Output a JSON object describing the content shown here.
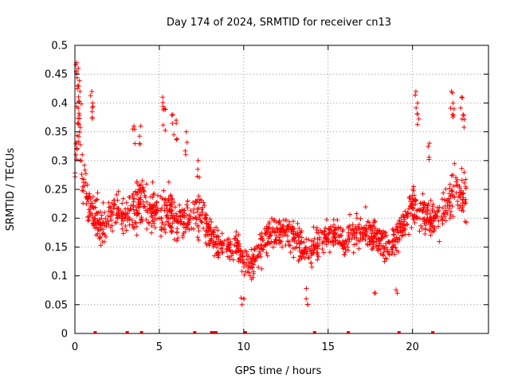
{
  "chart_data": {
    "type": "scatter",
    "title": "Day 174 of 2024, SRMTID for receiver cn13",
    "xlabel": "GPS time / hours",
    "ylabel": "SRMTID / TECUs",
    "xlim": [
      0,
      24.5
    ],
    "ylim": [
      0,
      0.5
    ],
    "x_ticks": [
      0,
      5,
      10,
      15,
      20
    ],
    "x_tick_labels": [
      "0",
      "5",
      "10",
      "15",
      "20"
    ],
    "y_ticks": [
      0,
      0.05,
      0.1,
      0.15,
      0.2,
      0.25,
      0.3,
      0.35,
      0.4,
      0.45,
      0.5
    ],
    "y_tick_labels": [
      "0",
      "0.05",
      "0.1",
      "0.15",
      "0.2",
      "0.25",
      "0.3",
      "0.35",
      "0.4",
      "0.45",
      "0.5"
    ],
    "grid": true,
    "marker": "+",
    "color": "#ff0000",
    "series": [
      {
        "name": "SRMTID",
        "trend": [
          [
            0.0,
            0.3,
            0.06
          ],
          [
            0.2,
            0.38,
            0.07
          ],
          [
            0.5,
            0.25,
            0.05
          ],
          [
            1.0,
            0.21,
            0.05
          ],
          [
            1.5,
            0.19,
            0.04
          ],
          [
            2.0,
            0.2,
            0.04
          ],
          [
            2.5,
            0.22,
            0.04
          ],
          [
            3.0,
            0.2,
            0.04
          ],
          [
            3.5,
            0.22,
            0.05
          ],
          [
            4.0,
            0.23,
            0.05
          ],
          [
            4.5,
            0.22,
            0.05
          ],
          [
            5.0,
            0.21,
            0.05
          ],
          [
            5.5,
            0.22,
            0.05
          ],
          [
            6.0,
            0.19,
            0.05
          ],
          [
            6.5,
            0.2,
            0.04
          ],
          [
            7.0,
            0.2,
            0.04
          ],
          [
            7.5,
            0.21,
            0.05
          ],
          [
            8.0,
            0.17,
            0.04
          ],
          [
            8.5,
            0.15,
            0.035
          ],
          [
            9.0,
            0.15,
            0.035
          ],
          [
            9.5,
            0.15,
            0.035
          ],
          [
            10.0,
            0.13,
            0.035
          ],
          [
            10.5,
            0.12,
            0.035
          ],
          [
            11.0,
            0.15,
            0.035
          ],
          [
            11.5,
            0.17,
            0.035
          ],
          [
            12.0,
            0.18,
            0.035
          ],
          [
            12.5,
            0.18,
            0.035
          ],
          [
            13.0,
            0.17,
            0.035
          ],
          [
            13.5,
            0.15,
            0.04
          ],
          [
            14.0,
            0.14,
            0.035
          ],
          [
            14.5,
            0.16,
            0.035
          ],
          [
            15.0,
            0.17,
            0.035
          ],
          [
            15.5,
            0.17,
            0.035
          ],
          [
            16.0,
            0.16,
            0.035
          ],
          [
            16.5,
            0.17,
            0.04
          ],
          [
            17.0,
            0.18,
            0.04
          ],
          [
            17.5,
            0.17,
            0.035
          ],
          [
            18.0,
            0.16,
            0.035
          ],
          [
            18.5,
            0.15,
            0.035
          ],
          [
            19.0,
            0.16,
            0.035
          ],
          [
            19.5,
            0.19,
            0.04
          ],
          [
            20.0,
            0.22,
            0.05
          ],
          [
            20.5,
            0.21,
            0.05
          ],
          [
            21.0,
            0.2,
            0.045
          ],
          [
            21.5,
            0.2,
            0.045
          ],
          [
            22.0,
            0.22,
            0.05
          ],
          [
            22.5,
            0.25,
            0.06
          ],
          [
            23.0,
            0.24,
            0.05
          ]
        ],
        "x_range": [
          0,
          23.2
        ],
        "n_points": 1500,
        "spikes": [
          [
            0.1,
            0.47
          ],
          [
            0.2,
            0.46
          ],
          [
            0.15,
            0.43
          ],
          [
            0.3,
            0.42
          ],
          [
            1.0,
            0.42
          ],
          [
            1.05,
            0.4
          ],
          [
            3.5,
            0.36
          ],
          [
            3.9,
            0.36
          ],
          [
            5.2,
            0.41
          ],
          [
            5.3,
            0.39
          ],
          [
            5.8,
            0.38
          ],
          [
            6.0,
            0.37
          ],
          [
            6.6,
            0.35
          ],
          [
            7.3,
            0.3
          ],
          [
            20.2,
            0.42
          ],
          [
            20.3,
            0.4
          ],
          [
            21.0,
            0.33
          ],
          [
            22.3,
            0.42
          ],
          [
            22.4,
            0.4
          ],
          [
            22.9,
            0.41
          ],
          [
            23.0,
            0.38
          ]
        ],
        "dips": [
          [
            9.9,
            0.05
          ],
          [
            10.0,
            0.06
          ],
          [
            13.7,
            0.06
          ],
          [
            13.8,
            0.05
          ],
          [
            17.8,
            0.07
          ],
          [
            19.1,
            0.07
          ]
        ],
        "zero_values_at": [
          1.2,
          3.1,
          3.95,
          7.1,
          8.1,
          8.2,
          8.35,
          10.1,
          14.2,
          16.2,
          19.2,
          21.2
        ]
      }
    ]
  }
}
